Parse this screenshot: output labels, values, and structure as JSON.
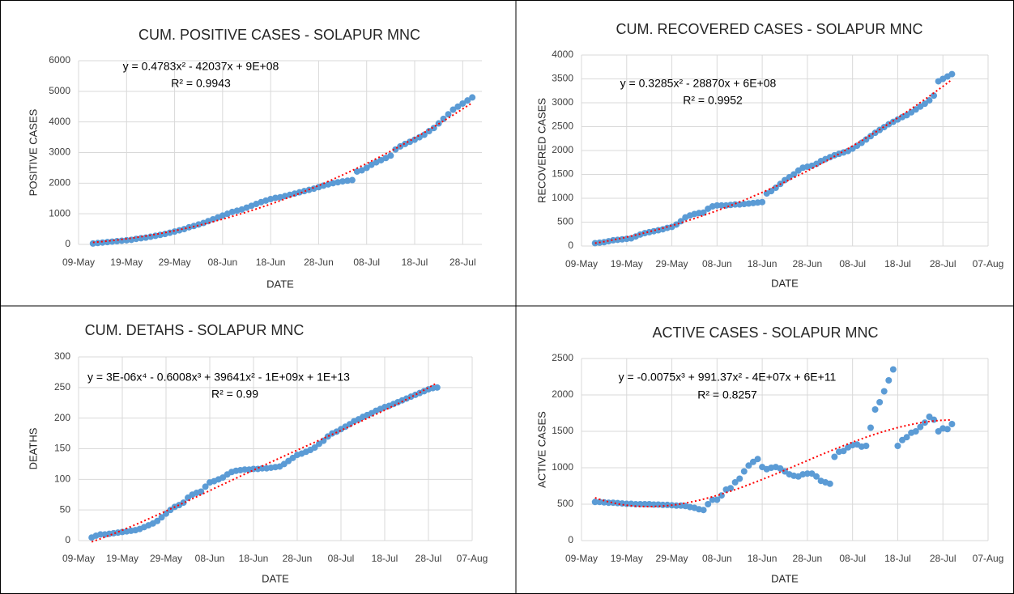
{
  "chart_data": [
    {
      "type": "scatter",
      "title": "CUM. POSITIVE CASES - SOLAPUR MNC",
      "x_label": "DATE",
      "y_label": "POSITIVE CASES",
      "color": "#5b9bd5",
      "grid": true,
      "trendline": {
        "type": "polynomial",
        "order": 2,
        "color": "#ff0000"
      },
      "annotations": [
        "y = 0.4783x² - 42037x + 9E+08",
        "R² = 0.9943"
      ],
      "xlim": [
        43960,
        44044
      ],
      "xticks": [
        {
          "value": 43960,
          "label": "09-May"
        },
        {
          "value": 43970,
          "label": "19-May"
        },
        {
          "value": 43980,
          "label": "29-May"
        },
        {
          "value": 43990,
          "label": "08-Jun"
        },
        {
          "value": 44000,
          "label": "18-Jun"
        },
        {
          "value": 44010,
          "label": "28-Jun"
        },
        {
          "value": 44020,
          "label": "08-Jul"
        },
        {
          "value": 44030,
          "label": "18-Jul"
        },
        {
          "value": 44040,
          "label": "28-Jul"
        }
      ],
      "ylim": [
        0,
        6000
      ],
      "yticks": [
        0,
        1000,
        2000,
        3000,
        4000,
        5000,
        6000
      ],
      "x": [
        43963,
        43964,
        43965,
        43966,
        43967,
        43968,
        43969,
        43970,
        43971,
        43972,
        43973,
        43974,
        43975,
        43976,
        43977,
        43978,
        43979,
        43980,
        43981,
        43982,
        43983,
        43984,
        43985,
        43986,
        43987,
        43988,
        43989,
        43990,
        43991,
        43992,
        43993,
        43994,
        43995,
        43996,
        43997,
        43998,
        43999,
        44000,
        44001,
        44002,
        44003,
        44004,
        44005,
        44006,
        44007,
        44008,
        44009,
        44010,
        44011,
        44012,
        44013,
        44014,
        44015,
        44016,
        44017,
        44018,
        44019,
        44020,
        44021,
        44022,
        44023,
        44024,
        44025,
        44026,
        44027,
        44028,
        44029,
        44030,
        44031,
        44032,
        44033,
        44034,
        44035,
        44036,
        44037,
        44038,
        44039,
        44040,
        44041,
        44042
      ],
      "values": [
        30,
        45,
        60,
        75,
        90,
        105,
        120,
        135,
        150,
        180,
        200,
        220,
        250,
        280,
        310,
        340,
        380,
        420,
        460,
        500,
        560,
        600,
        650,
        700,
        760,
        820,
        880,
        940,
        1000,
        1060,
        1100,
        1140,
        1200,
        1260,
        1320,
        1380,
        1430,
        1480,
        1520,
        1540,
        1580,
        1620,
        1660,
        1700,
        1740,
        1780,
        1820,
        1870,
        1920,
        1960,
        2000,
        2030,
        2060,
        2080,
        2100,
        2380,
        2420,
        2500,
        2600,
        2680,
        2750,
        2820,
        2900,
        3100,
        3200,
        3280,
        3350,
        3420,
        3500,
        3580,
        3700,
        3800,
        3950,
        4100,
        4250,
        4400,
        4500,
        4600,
        4700,
        4800
      ]
    },
    {
      "type": "scatter",
      "title": "CUM. RECOVERED CASES - SOLAPUR MNC",
      "x_label": "DATE",
      "y_label": "RECOVERED CASES",
      "color": "#5b9bd5",
      "grid": true,
      "trendline": {
        "type": "polynomial",
        "order": 2,
        "color": "#ff0000"
      },
      "annotations": [
        "y = 0.3285x² - 28870x + 6E+08",
        "R² = 0.9952"
      ],
      "xlim": [
        43960,
        44050
      ],
      "xticks": [
        {
          "value": 43960,
          "label": "09-May"
        },
        {
          "value": 43970,
          "label": "19-May"
        },
        {
          "value": 43980,
          "label": "29-May"
        },
        {
          "value": 43990,
          "label": "08-Jun"
        },
        {
          "value": 44000,
          "label": "18-Jun"
        },
        {
          "value": 44010,
          "label": "28-Jun"
        },
        {
          "value": 44020,
          "label": "08-Jul"
        },
        {
          "value": 44030,
          "label": "18-Jul"
        },
        {
          "value": 44040,
          "label": "28-Jul"
        },
        {
          "value": 44050,
          "label": "07-Aug"
        }
      ],
      "ylim": [
        0,
        4000
      ],
      "yticks": [
        0,
        500,
        1000,
        1500,
        2000,
        2500,
        3000,
        3500,
        4000
      ],
      "x": [
        43963,
        43964,
        43965,
        43966,
        43967,
        43968,
        43969,
        43970,
        43971,
        43972,
        43973,
        43974,
        43975,
        43976,
        43977,
        43978,
        43979,
        43980,
        43981,
        43982,
        43983,
        43984,
        43985,
        43986,
        43987,
        43988,
        43989,
        43990,
        43991,
        43992,
        43993,
        43994,
        43995,
        43996,
        43997,
        43998,
        43999,
        44000,
        44001,
        44002,
        44003,
        44004,
        44005,
        44006,
        44007,
        44008,
        44009,
        44010,
        44011,
        44012,
        44013,
        44014,
        44015,
        44016,
        44017,
        44018,
        44019,
        44020,
        44021,
        44022,
        44023,
        44024,
        44025,
        44026,
        44027,
        44028,
        44029,
        44030,
        44031,
        44032,
        44033,
        44034,
        44035,
        44036,
        44037,
        44038,
        44039,
        44040,
        44041,
        44042
      ],
      "values": [
        60,
        70,
        80,
        100,
        120,
        130,
        140,
        150,
        160,
        200,
        240,
        270,
        290,
        310,
        330,
        350,
        380,
        400,
        450,
        520,
        600,
        640,
        670,
        690,
        700,
        780,
        830,
        850,
        850,
        850,
        860,
        870,
        870,
        880,
        890,
        900,
        910,
        920,
        1100,
        1150,
        1220,
        1300,
        1380,
        1440,
        1500,
        1580,
        1640,
        1660,
        1680,
        1720,
        1780,
        1820,
        1860,
        1900,
        1930,
        1960,
        1990,
        2040,
        2100,
        2160,
        2230,
        2300,
        2370,
        2430,
        2490,
        2550,
        2600,
        2650,
        2700,
        2740,
        2800,
        2860,
        2920,
        2980,
        3050,
        3150,
        3450,
        3500,
        3550,
        3600
      ]
    },
    {
      "type": "scatter",
      "title": "CUM. DETAHS - SOLAPUR MNC",
      "x_label": "DATE",
      "y_label": "DEATHS",
      "color": "#5b9bd5",
      "grid": true,
      "trendline": {
        "type": "polynomial",
        "order": 4,
        "color": "#ff0000"
      },
      "annotations": [
        "y = 3E-06x⁴ - 0.6008x³ + 39641x² - 1E+09x + 1E+13",
        "R² = 0.99"
      ],
      "xlim": [
        43960,
        44050
      ],
      "xticks": [
        {
          "value": 43960,
          "label": "09-May"
        },
        {
          "value": 43970,
          "label": "19-May"
        },
        {
          "value": 43980,
          "label": "29-May"
        },
        {
          "value": 43990,
          "label": "08-Jun"
        },
        {
          "value": 44000,
          "label": "18-Jun"
        },
        {
          "value": 44010,
          "label": "28-Jun"
        },
        {
          "value": 44020,
          "label": "08-Jul"
        },
        {
          "value": 44030,
          "label": "18-Jul"
        },
        {
          "value": 44040,
          "label": "28-Jul"
        },
        {
          "value": 44050,
          "label": "07-Aug"
        }
      ],
      "ylim": [
        0,
        300
      ],
      "yticks": [
        0,
        50,
        100,
        150,
        200,
        250,
        300
      ],
      "x": [
        43963,
        43964,
        43965,
        43966,
        43967,
        43968,
        43969,
        43970,
        43971,
        43972,
        43973,
        43974,
        43975,
        43976,
        43977,
        43978,
        43979,
        43980,
        43981,
        43982,
        43983,
        43984,
        43985,
        43986,
        43987,
        43988,
        43989,
        43990,
        43991,
        43992,
        43993,
        43994,
        43995,
        43996,
        43997,
        43998,
        43999,
        44000,
        44001,
        44002,
        44003,
        44004,
        44005,
        44006,
        44007,
        44008,
        44009,
        44010,
        44011,
        44012,
        44013,
        44014,
        44015,
        44016,
        44017,
        44018,
        44019,
        44020,
        44021,
        44022,
        44023,
        44024,
        44025,
        44026,
        44027,
        44028,
        44029,
        44030,
        44031,
        44032,
        44033,
        44034,
        44035,
        44036,
        44037,
        44038,
        44039,
        44040,
        44041,
        44042
      ],
      "values": [
        5,
        8,
        10,
        10,
        11,
        12,
        13,
        14,
        15,
        16,
        17,
        19,
        22,
        25,
        28,
        32,
        38,
        44,
        50,
        55,
        58,
        62,
        70,
        75,
        78,
        80,
        88,
        95,
        97,
        100,
        103,
        108,
        112,
        114,
        115,
        116,
        116,
        117,
        117,
        118,
        118,
        119,
        120,
        121,
        125,
        130,
        135,
        140,
        142,
        145,
        148,
        152,
        158,
        163,
        170,
        175,
        178,
        182,
        186,
        190,
        195,
        198,
        202,
        205,
        208,
        212,
        215,
        218,
        220,
        223,
        226,
        229,
        232,
        235,
        238,
        241,
        244,
        247,
        249,
        250
      ]
    },
    {
      "type": "scatter",
      "title": "ACTIVE CASES - SOLAPUR MNC",
      "x_label": "DATE",
      "y_label": "ACTIVE CASES",
      "color": "#5b9bd5",
      "grid": true,
      "trendline": {
        "type": "polynomial",
        "order": 3,
        "color": "#ff0000"
      },
      "annotations": [
        "y = -0.0075x³ + 991.37x² - 4E+07x + 6E+11",
        "R² = 0.8257"
      ],
      "xlim": [
        43960,
        44050
      ],
      "xticks": [
        {
          "value": 43960,
          "label": "09-May"
        },
        {
          "value": 43970,
          "label": "19-May"
        },
        {
          "value": 43980,
          "label": "29-May"
        },
        {
          "value": 43990,
          "label": "08-Jun"
        },
        {
          "value": 44000,
          "label": "18-Jun"
        },
        {
          "value": 44010,
          "label": "28-Jun"
        },
        {
          "value": 44020,
          "label": "08-Jul"
        },
        {
          "value": 44030,
          "label": "18-Jul"
        },
        {
          "value": 44040,
          "label": "28-Jul"
        },
        {
          "value": 44050,
          "label": "07-Aug"
        }
      ],
      "ylim": [
        0,
        2500
      ],
      "yticks": [
        0,
        500,
        1000,
        1500,
        2000,
        2500
      ],
      "x": [
        43963,
        43964,
        43965,
        43966,
        43967,
        43968,
        43969,
        43970,
        43971,
        43972,
        43973,
        43974,
        43975,
        43976,
        43977,
        43978,
        43979,
        43980,
        43981,
        43982,
        43983,
        43984,
        43985,
        43986,
        43987,
        43988,
        43989,
        43990,
        43991,
        43992,
        43993,
        43994,
        43995,
        43996,
        43997,
        43998,
        43999,
        44000,
        44001,
        44002,
        44003,
        44004,
        44005,
        44006,
        44007,
        44008,
        44009,
        44010,
        44011,
        44012,
        44013,
        44014,
        44015,
        44016,
        44017,
        44018,
        44019,
        44020,
        44021,
        44022,
        44023,
        44024,
        44025,
        44026,
        44027,
        44028,
        44029,
        44030,
        44031,
        44032,
        44033,
        44034,
        44035,
        44036,
        44037,
        44038,
        44039,
        44040,
        44041,
        44042
      ],
      "values": [
        530,
        530,
        525,
        520,
        520,
        515,
        510,
        505,
        505,
        500,
        500,
        500,
        500,
        495,
        495,
        490,
        490,
        485,
        480,
        480,
        475,
        460,
        450,
        430,
        420,
        500,
        560,
        560,
        620,
        700,
        720,
        800,
        850,
        950,
        1030,
        1080,
        1120,
        1010,
        980,
        1000,
        1010,
        990,
        950,
        910,
        890,
        880,
        910,
        920,
        920,
        880,
        820,
        800,
        780,
        1150,
        1220,
        1230,
        1280,
        1310,
        1320,
        1290,
        1300,
        1550,
        1800,
        1900,
        2050,
        2200,
        2350,
        1300,
        1380,
        1420,
        1480,
        1500,
        1560,
        1620,
        1700,
        1660,
        1500,
        1540,
        1530,
        1600
      ]
    }
  ]
}
